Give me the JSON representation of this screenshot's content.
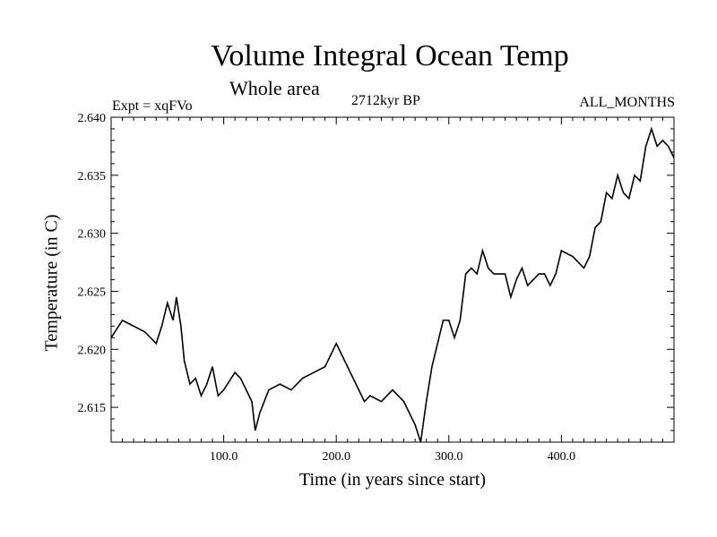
{
  "chart_data": {
    "type": "line",
    "title": "Volume Integral Ocean Temp",
    "subtitle": "Whole area",
    "left_label": "Expt = xqFVo",
    "center_label": "2712kyr BP",
    "right_label": "ALL_MONTHS",
    "xlabel": "Time (in years since start)",
    "ylabel": "Temperature (in C)",
    "xlim": [
      0,
      500
    ],
    "ylim": [
      2.612,
      2.64
    ],
    "xticks": [
      100,
      200,
      300,
      400
    ],
    "xtick_labels": [
      "100.0",
      "200.0",
      "300.0",
      "400.0"
    ],
    "yticks": [
      2.615,
      2.62,
      2.625,
      2.63,
      2.635,
      2.64
    ],
    "ytick_labels": [
      "2.615",
      "2.620",
      "2.625",
      "2.630",
      "2.635",
      "2.640"
    ],
    "series": [
      {
        "name": "Temperature",
        "color": "#000000",
        "x": [
          0,
          10,
          20,
          30,
          40,
          45,
          50,
          55,
          58,
          62,
          65,
          70,
          75,
          80,
          85,
          90,
          95,
          100,
          110,
          115,
          120,
          125,
          128,
          132,
          140,
          150,
          160,
          170,
          180,
          190,
          195,
          200,
          205,
          210,
          215,
          220,
          225,
          230,
          240,
          250,
          260,
          265,
          270,
          275,
          280,
          285,
          290,
          295,
          300,
          305,
          310,
          315,
          320,
          325,
          330,
          335,
          340,
          350,
          355,
          360,
          365,
          370,
          380,
          385,
          390,
          395,
          400,
          410,
          420,
          425,
          430,
          435,
          440,
          445,
          450,
          455,
          460,
          465,
          470,
          475,
          480,
          485,
          490,
          495,
          500
        ],
        "values": [
          2.621,
          2.6225,
          2.622,
          2.6215,
          2.6205,
          2.622,
          2.624,
          2.6225,
          2.6245,
          2.622,
          2.619,
          2.617,
          2.6175,
          2.616,
          2.617,
          2.6185,
          2.616,
          2.6165,
          2.618,
          2.6175,
          2.6165,
          2.6155,
          2.613,
          2.6145,
          2.6165,
          2.617,
          2.6165,
          2.6175,
          2.618,
          2.6185,
          2.6195,
          2.6205,
          2.6195,
          2.6185,
          2.6175,
          2.6165,
          2.6155,
          2.616,
          2.6155,
          2.6165,
          2.6155,
          2.6145,
          2.6135,
          2.612,
          2.6155,
          2.6185,
          2.6205,
          2.6225,
          2.6225,
          2.621,
          2.6225,
          2.6265,
          2.627,
          2.6265,
          2.6285,
          2.627,
          2.6265,
          2.6265,
          2.6245,
          2.626,
          2.627,
          2.6255,
          2.6265,
          2.6265,
          2.6255,
          2.6265,
          2.6285,
          2.628,
          2.627,
          2.628,
          2.6305,
          2.631,
          2.6335,
          2.633,
          2.635,
          2.6335,
          2.633,
          2.635,
          2.6345,
          2.6375,
          2.639,
          2.6375,
          2.638,
          2.6375,
          2.6365
        ]
      }
    ]
  }
}
